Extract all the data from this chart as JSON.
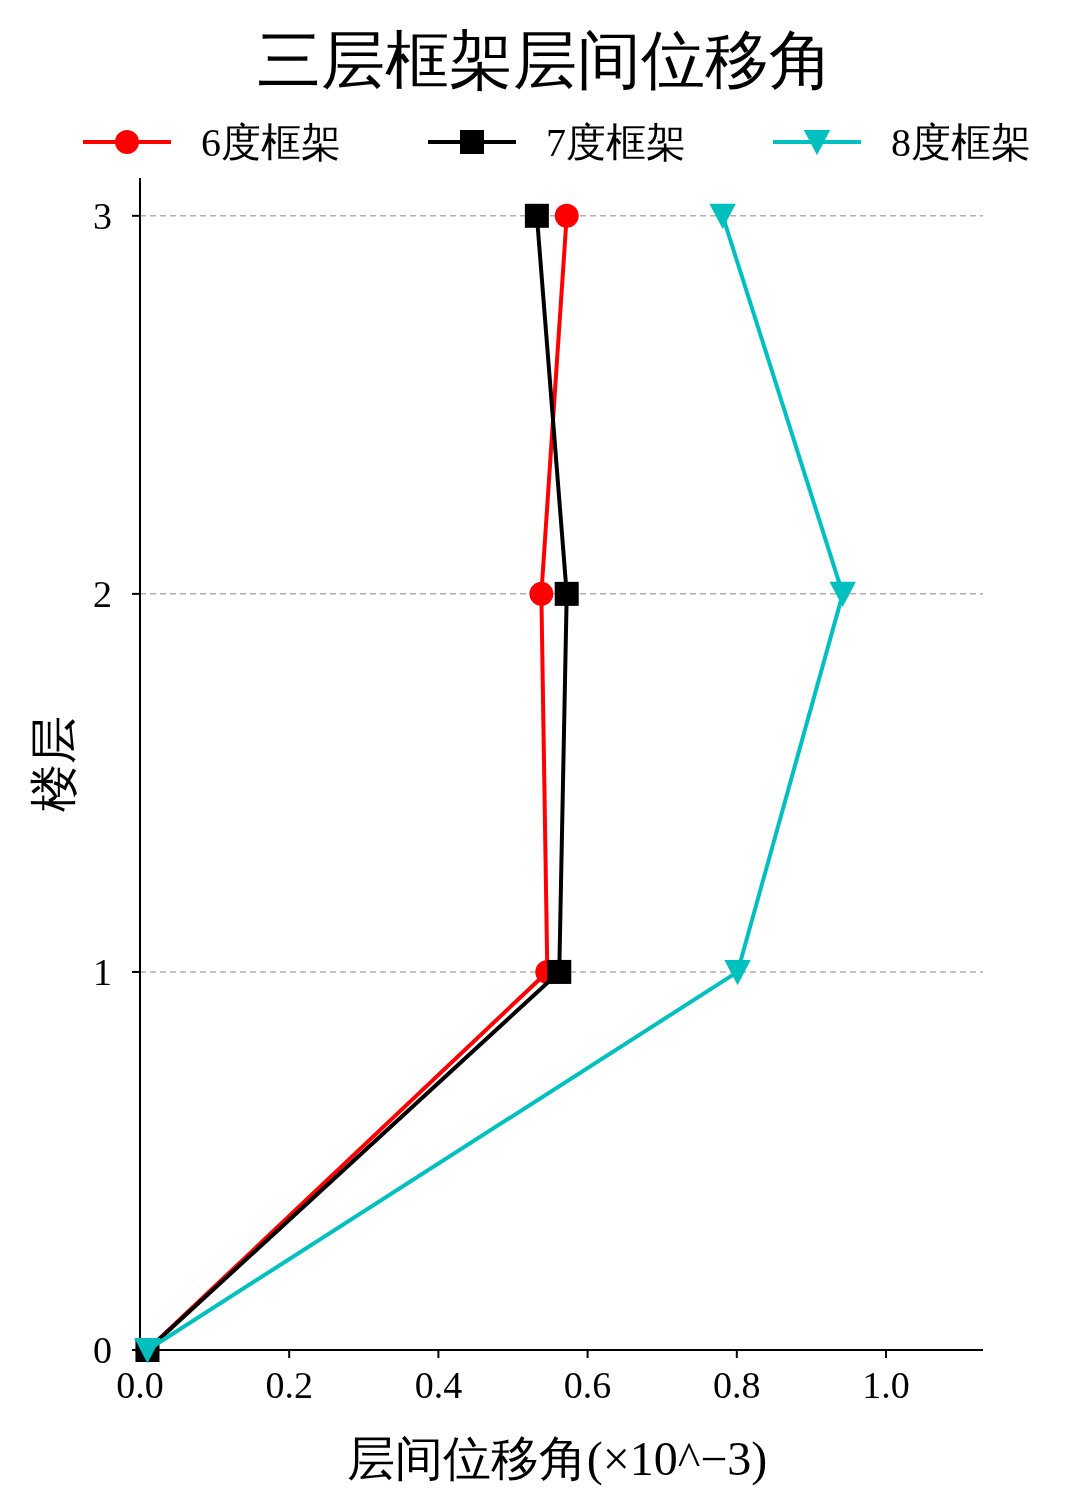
{
  "chart_data": {
    "type": "line",
    "title": "三层框架层间位移角",
    "xlabel": "层间位移角(×10^−3)",
    "ylabel": "楼层",
    "xlim": [
      0,
      1.13
    ],
    "xticks": [
      {
        "value": 0,
        "label": "0.0"
      },
      0.2,
      0.4,
      0.6,
      0.8,
      {
        "value": 1,
        "label": "1.0"
      }
    ],
    "ylim": [
      0,
      3.1
    ],
    "yticks": [
      0,
      1,
      2,
      3
    ],
    "grid": "y",
    "legend": "top",
    "line_style": "solid",
    "series": [
      {
        "name": "6度框架",
        "color": "#ff0000",
        "marker": "circle",
        "x": [
          0.01,
          0.546,
          0.538,
          0.572
        ],
        "values": [
          0,
          1,
          2,
          3
        ]
      },
      {
        "name": "7度框架",
        "color": "#000000",
        "marker": "square",
        "x": [
          0.01,
          0.562,
          0.572,
          0.532
        ],
        "values": [
          0,
          1,
          2,
          3
        ]
      },
      {
        "name": "8度框架",
        "color": "#00bfbf",
        "marker": "triangle",
        "x": [
          0.01,
          0.801,
          0.942,
          0.781
        ],
        "values": [
          0,
          1,
          2,
          3
        ]
      }
    ]
  }
}
